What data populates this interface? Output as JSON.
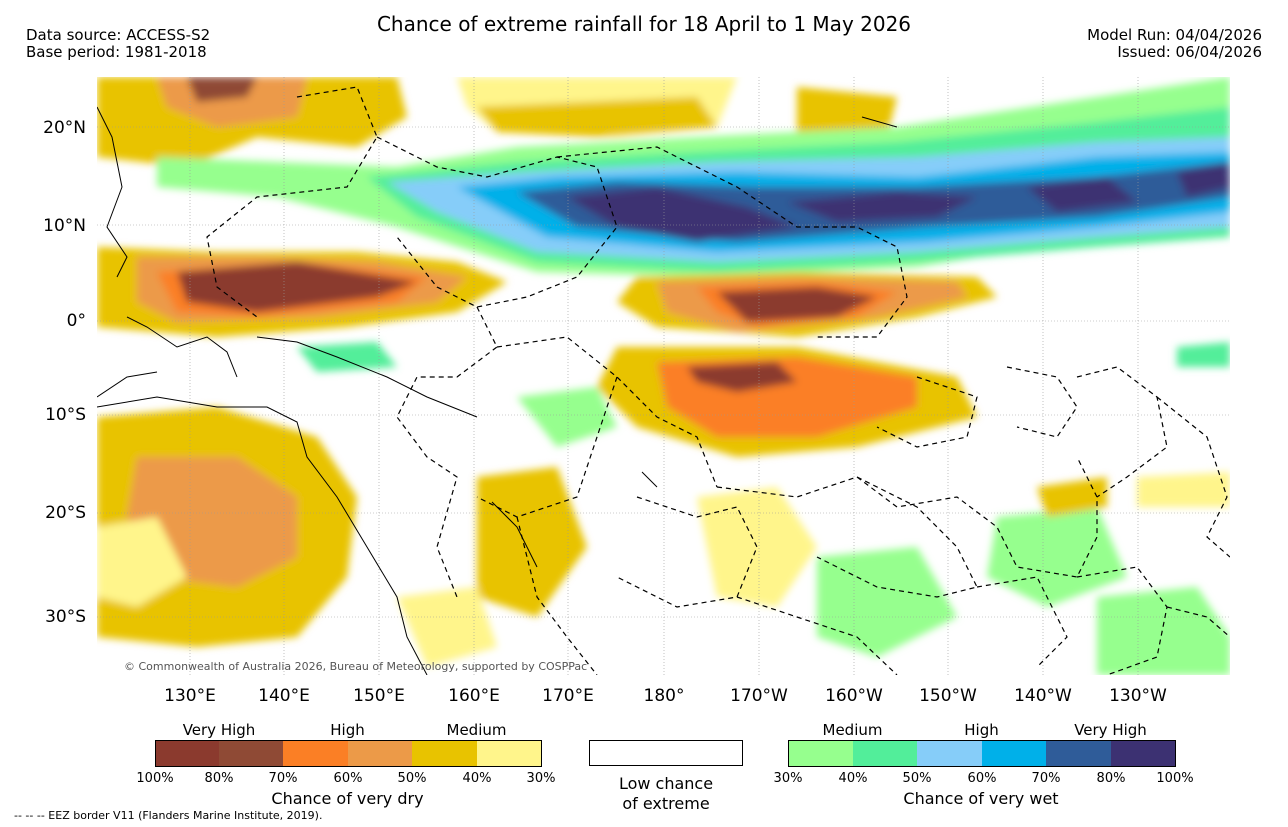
{
  "title": "Chance of extreme rainfall for 18 April to 1 May 2026",
  "data_source": "Data source: ACCESS-S2",
  "base_period": "Base period: 1981-2018",
  "model_run": "Model Run: 04/04/2026",
  "issued": "Issued: 06/04/2026",
  "credit": "© Commonwealth of Australia 2026, Bureau of Meteorology, supported by COSPPac",
  "footer": "-- -- -- EEZ border V11 (Flanders Marine Institute, 2019).",
  "lat_labels": [
    "20°N",
    "10°N",
    "0°",
    "10°S",
    "20°S",
    "30°S"
  ],
  "lon_labels": [
    "130°E",
    "140°E",
    "150°E",
    "160°E",
    "170°E",
    "180°",
    "170°W",
    "160°W",
    "150°W",
    "140°W",
    "130°W"
  ],
  "dry": {
    "headers": [
      "Very High",
      "High",
      "Medium"
    ],
    "ticks": [
      "100%",
      "80%",
      "70%",
      "60%",
      "50%",
      "40%",
      "30%"
    ],
    "caption": "Chance of very dry",
    "colors": [
      "#8b3a2e",
      "#8f4a35",
      "#fb7f25",
      "#ec9a48",
      "#e8c300",
      "#fff58b"
    ]
  },
  "low": {
    "caption_line1": "Low chance",
    "caption_line2": "of extreme"
  },
  "wet": {
    "headers": [
      "Medium",
      "High",
      "Very High"
    ],
    "ticks": [
      "30%",
      "40%",
      "50%",
      "60%",
      "70%",
      "80%",
      "100%"
    ],
    "caption": "Chance of very wet",
    "colors": [
      "#96ff8e",
      "#52ee9a",
      "#86cdf9",
      "#00b0e9",
      "#2f5c99",
      "#3c3172"
    ]
  }
}
